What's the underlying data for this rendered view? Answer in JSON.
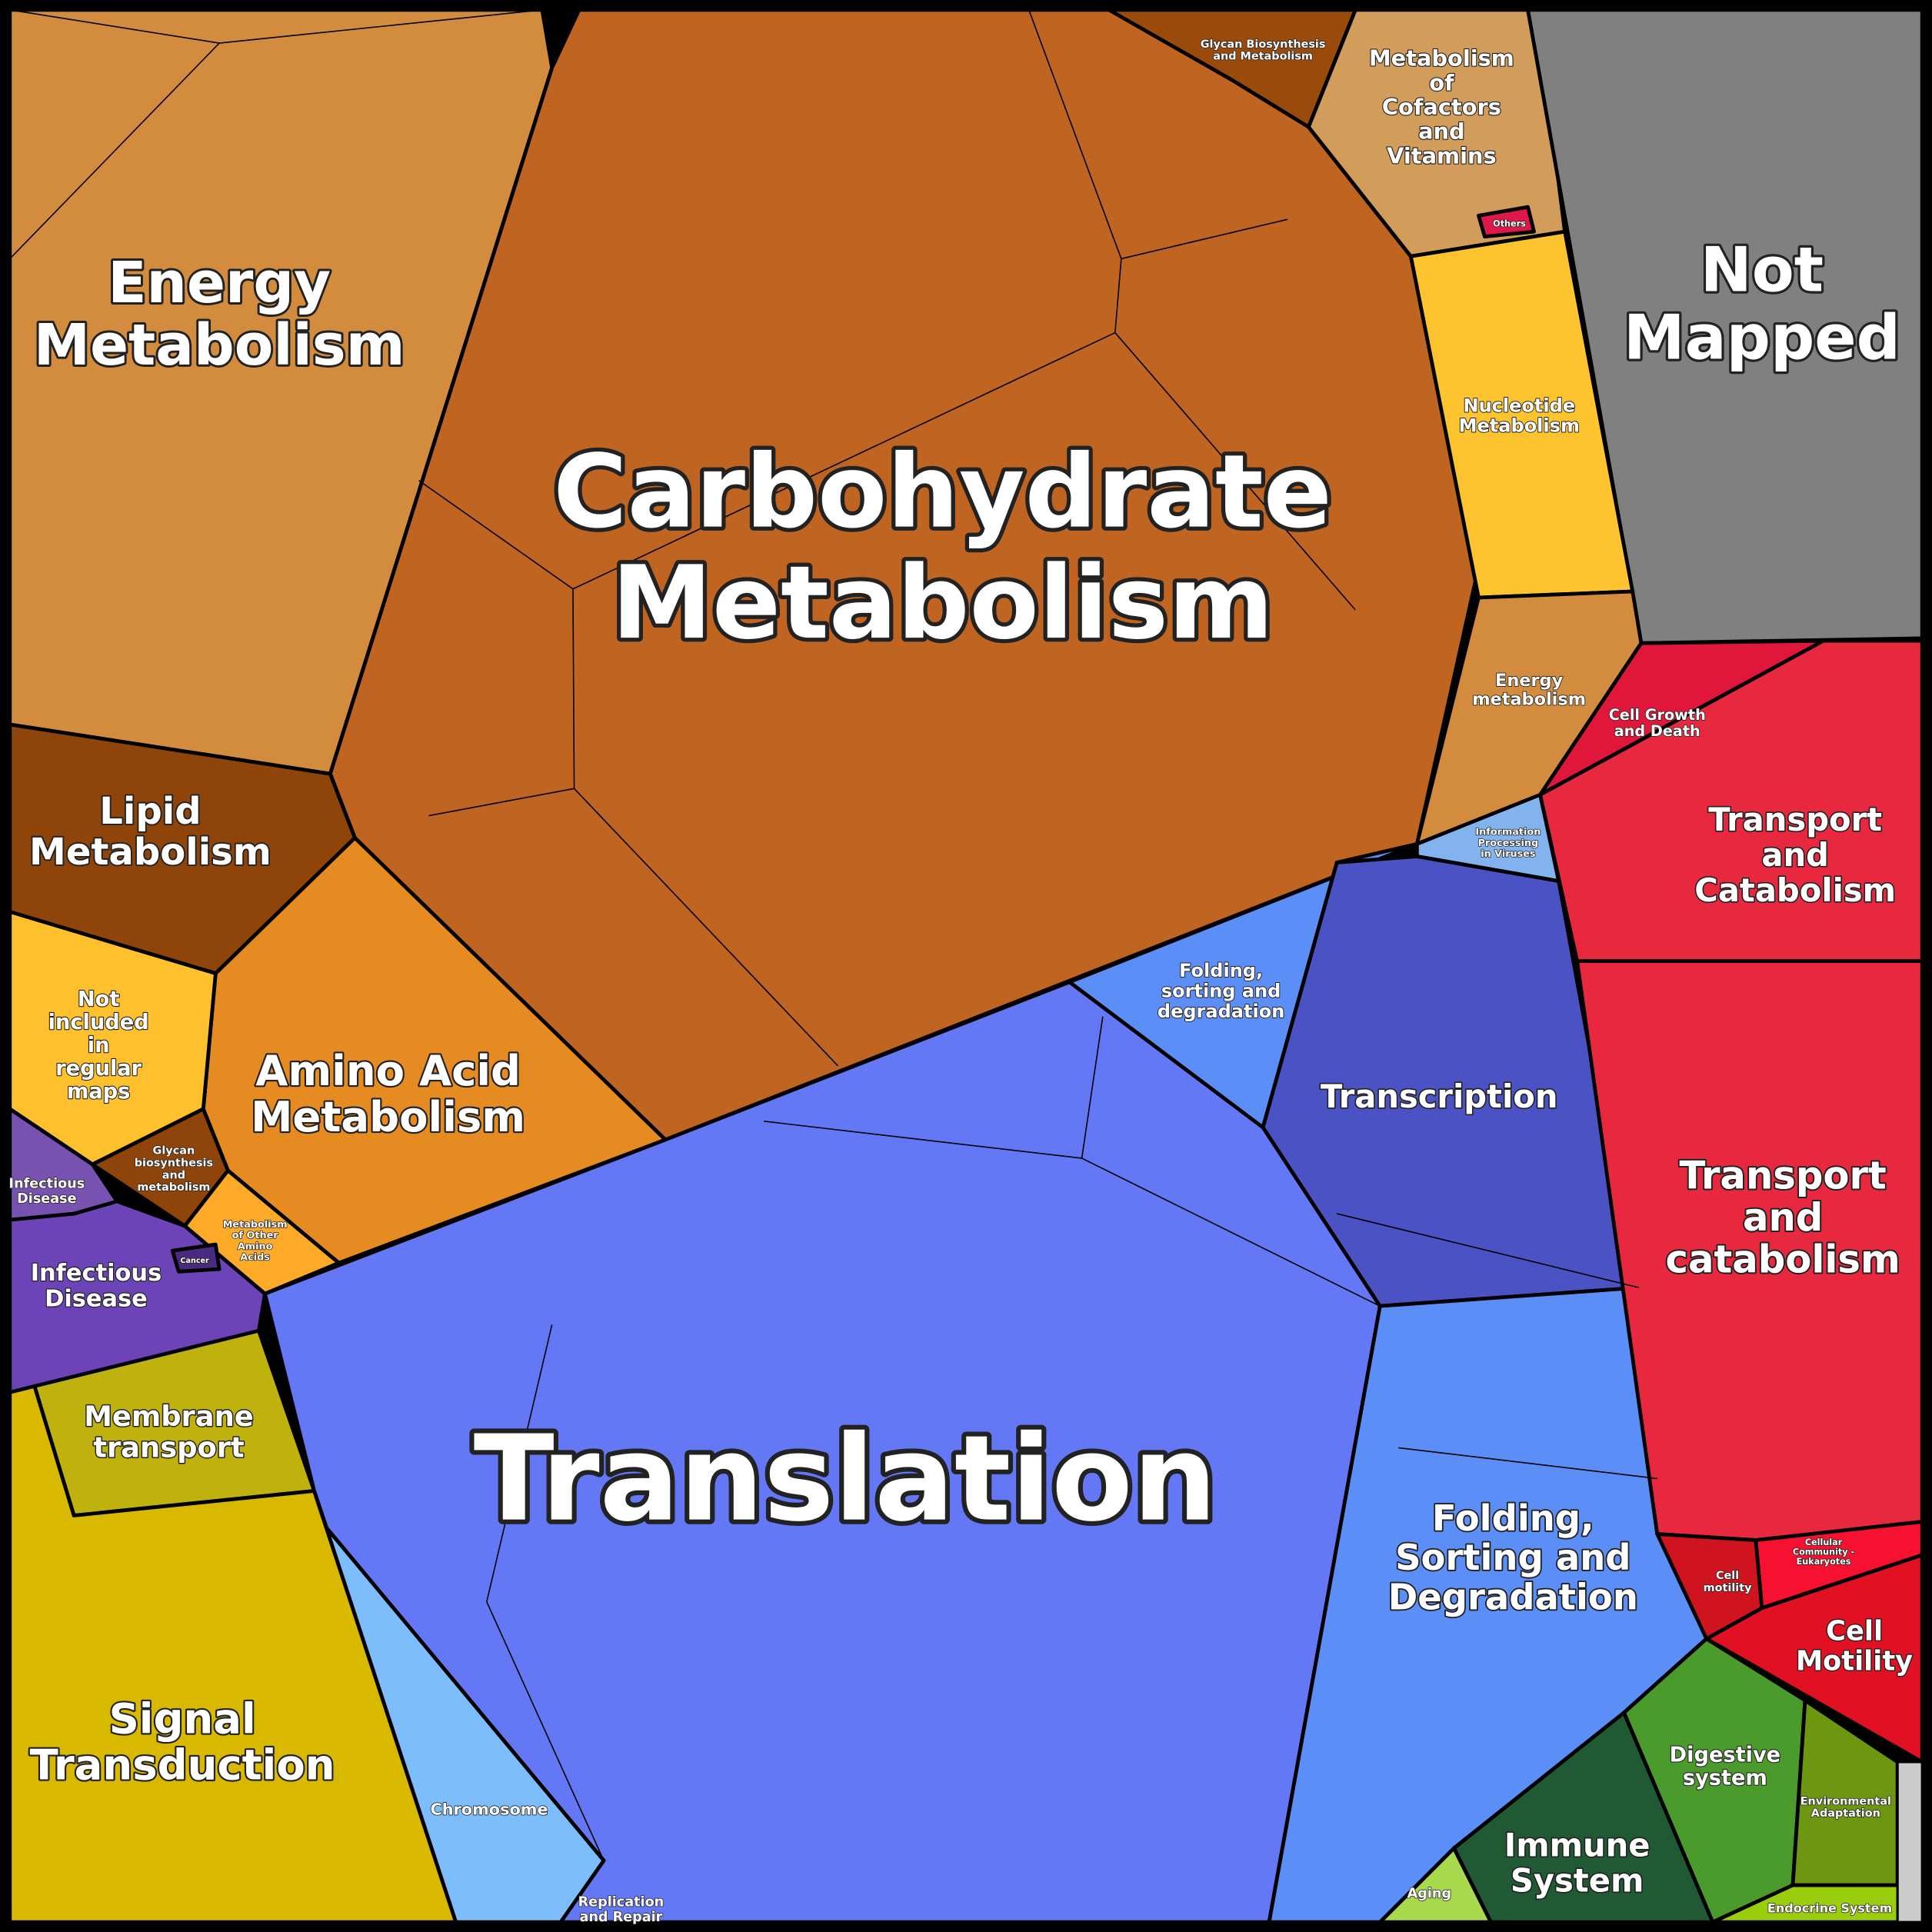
{
  "regions": [
    {
      "lines": [
        "Energy",
        "Metabolism"
      ]
    },
    {
      "lines": [
        "Carbohydrate",
        "Metabolism"
      ]
    },
    {
      "lines": [
        "Metabolism",
        "of",
        "Cofactors",
        "and",
        "Vitamins"
      ]
    },
    {
      "lines": [
        "Glycan Biosynthesis",
        "and Metabolism"
      ]
    },
    {
      "lines": [
        "Not",
        "Mapped"
      ]
    },
    {
      "lines": [
        "Nucleotide",
        "Metabolism"
      ]
    },
    {
      "lines": [
        "Energy",
        "metabolism"
      ]
    },
    {
      "lines": [
        "Lipid",
        "Metabolism"
      ]
    },
    {
      "lines": [
        "Amino Acid",
        "Metabolism"
      ]
    },
    {
      "lines": [
        "Not",
        "included",
        "in",
        "regular",
        "maps"
      ]
    },
    {
      "lines": [
        "Glycan",
        "biosynthesis",
        "and",
        "metabolism"
      ]
    },
    {
      "lines": [
        "Metabolism",
        "of Other",
        "Amino",
        "Acids"
      ]
    },
    {
      "lines": [
        "Infectious",
        "Disease"
      ]
    },
    {
      "lines": [
        "Membrane",
        "transport"
      ]
    },
    {
      "lines": [
        "Signal",
        "Transduction"
      ]
    },
    {
      "lines": [
        "Translation"
      ]
    },
    {
      "lines": [
        "Chromosome"
      ]
    },
    {
      "lines": [
        "Folding,",
        "sorting and",
        "degradation"
      ]
    },
    {
      "lines": [
        "Transcription"
      ]
    },
    {
      "lines": [
        "Information",
        "Processing",
        "in Viruses"
      ]
    },
    {
      "lines": [
        "Folding,",
        "Sorting and",
        "Degradation"
      ]
    },
    {
      "lines": [
        "Cell Growth",
        "and Death"
      ]
    },
    {
      "lines": [
        "Transport",
        "and",
        "Catabolism"
      ]
    },
    {
      "lines": [
        "Transport",
        "and",
        "catabolism"
      ]
    },
    {
      "lines": [
        "Cell",
        "Motility"
      ]
    },
    {
      "lines": [
        "Digestive",
        "system"
      ]
    },
    {
      "lines": [
        "Immune",
        "System"
      ]
    },
    {
      "lines": [
        "Environmental",
        "Adaptation"
      ]
    },
    {
      "lines": [
        "Endocrine System"
      ]
    },
    {
      "lines": [
        "Aging"
      ]
    },
    {
      "lines": [
        "Replication",
        "and Repair"
      ]
    },
    {
      "lines": [
        "Infectious",
        "Disease"
      ]
    },
    {
      "lines": [
        "Cell",
        "motility"
      ]
    },
    {
      "lines": [
        "Cellular",
        "Community -",
        "Eukaryotes"
      ]
    },
    {
      "lines": [
        "Others"
      ]
    },
    {
      "lines": [
        "Cancer"
      ]
    }
  ]
}
